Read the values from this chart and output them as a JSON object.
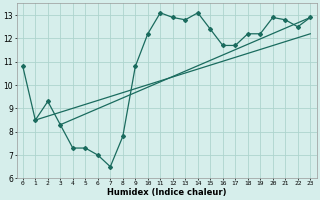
{
  "title": "",
  "xlabel": "Humidex (Indice chaleur)",
  "xlim": [
    -0.5,
    23.5
  ],
  "ylim": [
    6.0,
    13.5
  ],
  "xticks": [
    0,
    1,
    2,
    3,
    4,
    5,
    6,
    7,
    8,
    9,
    10,
    11,
    12,
    13,
    14,
    15,
    16,
    17,
    18,
    19,
    20,
    21,
    22,
    23
  ],
  "yticks": [
    6,
    7,
    8,
    9,
    10,
    11,
    12,
    13
  ],
  "bg_color": "#d6eeeb",
  "line_color": "#1a6b5e",
  "grid_color": "#aed4ce",
  "main_x": [
    0,
    1,
    2,
    3,
    4,
    5,
    6,
    7,
    8,
    9,
    10,
    11,
    12,
    13,
    14,
    15,
    16,
    17,
    18,
    19,
    20,
    21,
    22,
    23
  ],
  "main_y": [
    10.8,
    8.5,
    9.3,
    8.3,
    7.3,
    7.3,
    7.0,
    6.5,
    7.8,
    10.8,
    12.2,
    13.1,
    12.9,
    12.8,
    13.1,
    12.4,
    11.7,
    11.7,
    12.2,
    12.2,
    12.9,
    12.8,
    12.5,
    12.9
  ],
  "trend1_x": [
    1,
    23
  ],
  "trend1_y": [
    8.5,
    12.2
  ],
  "trend2_x": [
    3,
    23
  ],
  "trend2_y": [
    8.3,
    12.9
  ]
}
